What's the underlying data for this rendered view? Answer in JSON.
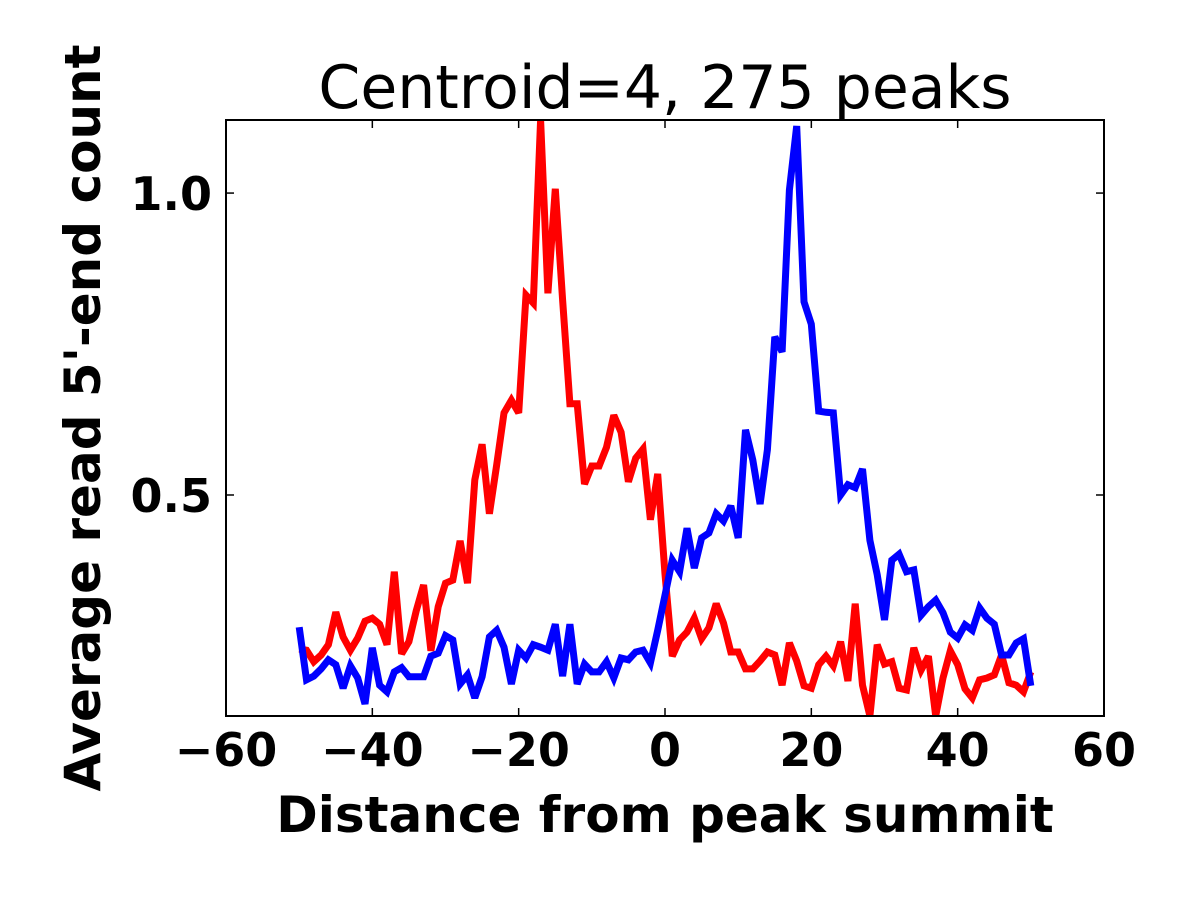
{
  "chart_data": {
    "type": "line",
    "title": "Centroid=4, 275 peaks",
    "xlabel": "Distance from peak summit",
    "ylabel": "Average read 5'-end count",
    "xlim": [
      -60,
      60
    ],
    "ylim": [
      0.134,
      1.121
    ],
    "xticks": [
      -60,
      -40,
      -20,
      0,
      20,
      40,
      60
    ],
    "xtick_labels": [
      "−60",
      "−40",
      "−20",
      "0",
      "20",
      "40",
      "60"
    ],
    "yticks": [
      0.5,
      1.0
    ],
    "ytick_labels": [
      "0.5",
      "1.0"
    ],
    "grid": false,
    "x_start": -50,
    "x_step": 1,
    "series": [
      {
        "color": "#ff0000",
        "values": [
          0.245,
          0.243,
          0.224,
          0.235,
          0.252,
          0.306,
          0.265,
          0.243,
          0.263,
          0.291,
          0.296,
          0.286,
          0.252,
          0.373,
          0.237,
          0.257,
          0.308,
          0.351,
          0.242,
          0.315,
          0.354,
          0.359,
          0.424,
          0.354,
          0.525,
          0.584,
          0.469,
          0.55,
          0.636,
          0.657,
          0.636,
          0.831,
          0.818,
          1.121,
          0.834,
          1.007,
          0.823,
          0.651,
          0.651,
          0.518,
          0.548,
          0.548,
          0.579,
          0.632,
          0.604,
          0.522,
          0.561,
          0.576,
          0.459,
          0.535,
          0.369,
          0.233,
          0.26,
          0.273,
          0.296,
          0.262,
          0.28,
          0.32,
          0.288,
          0.24,
          0.24,
          0.212,
          0.212,
          0.225,
          0.24,
          0.235,
          0.185,
          0.255,
          0.225,
          0.184,
          0.18,
          0.219,
          0.233,
          0.217,
          0.257,
          0.192,
          0.32,
          0.185,
          0.134,
          0.252,
          0.22,
          0.224,
          0.18,
          0.177,
          0.247,
          0.21,
          0.233,
          0.134,
          0.197,
          0.242,
          0.219,
          0.179,
          0.164,
          0.194,
          0.197,
          0.202,
          0.235,
          0.189,
          0.185,
          0.174,
          0.207
        ]
      },
      {
        "color": "#0000ff",
        "values": [
          0.281,
          0.194,
          0.2,
          0.212,
          0.227,
          0.219,
          0.18,
          0.217,
          0.197,
          0.154,
          0.247,
          0.185,
          0.174,
          0.207,
          0.214,
          0.199,
          0.199,
          0.199,
          0.233,
          0.238,
          0.267,
          0.26,
          0.187,
          0.202,
          0.164,
          0.199,
          0.265,
          0.276,
          0.248,
          0.187,
          0.243,
          0.23,
          0.252,
          0.248,
          0.243,
          0.286,
          0.2,
          0.286,
          0.187,
          0.22,
          0.207,
          0.207,
          0.224,
          0.197,
          0.23,
          0.227,
          0.24,
          0.243,
          0.222,
          0.276,
          0.334,
          0.392,
          0.373,
          0.445,
          0.379,
          0.429,
          0.437,
          0.469,
          0.457,
          0.482,
          0.429,
          0.608,
          0.558,
          0.485,
          0.575,
          0.762,
          0.737,
          1.005,
          1.111,
          0.82,
          0.783,
          0.639,
          0.637,
          0.636,
          0.5,
          0.517,
          0.512,
          0.543,
          0.425,
          0.368,
          0.293,
          0.392,
          0.402,
          0.373,
          0.376,
          0.301,
          0.315,
          0.326,
          0.305,
          0.273,
          0.263,
          0.285,
          0.276,
          0.313,
          0.296,
          0.286,
          0.235,
          0.235,
          0.255,
          0.262,
          0.184
        ]
      }
    ]
  }
}
